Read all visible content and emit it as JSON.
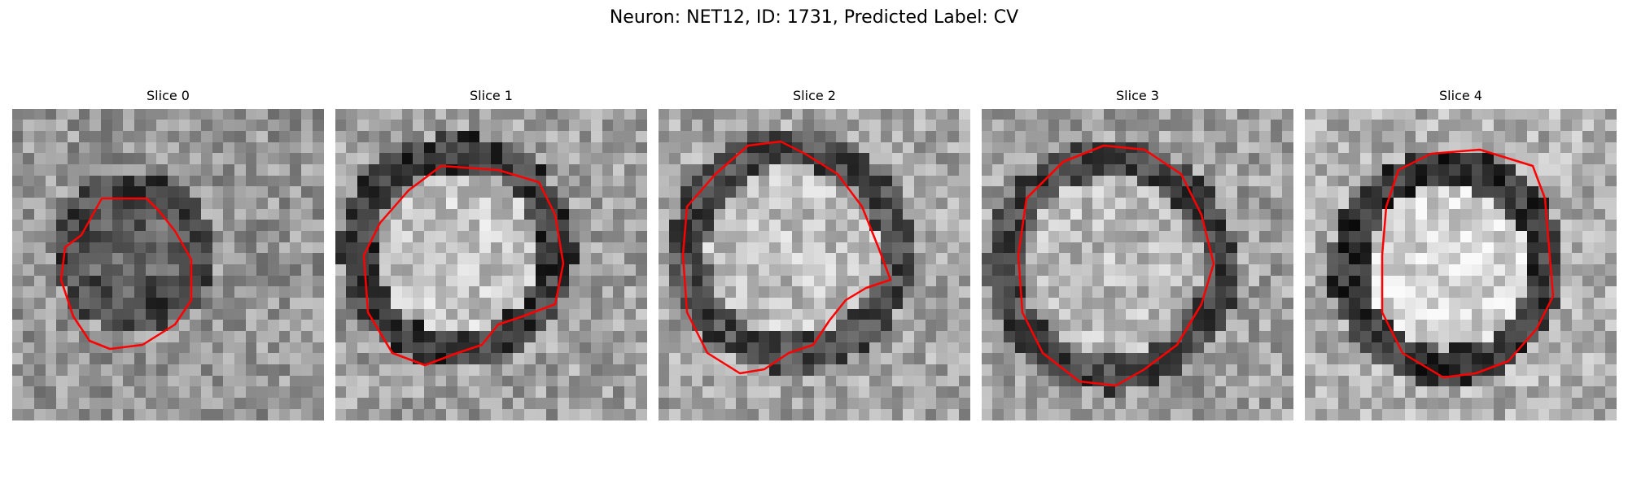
{
  "figure": {
    "title": "Neuron: NET12, ID: 1731, Predicted Label: CV"
  },
  "panels": [
    {
      "title": "Slice 0",
      "contour_color": "#ff0000"
    },
    {
      "title": "Slice 1",
      "contour_color": "#ff0000"
    },
    {
      "title": "Slice 2",
      "contour_color": "#ff0000"
    },
    {
      "title": "Slice 3",
      "contour_color": "#ff0000"
    },
    {
      "title": "Slice 4",
      "contour_color": "#ff0000"
    }
  ],
  "image_style": {
    "colormap": "grayscale",
    "overlay": "red segmentation contour"
  }
}
